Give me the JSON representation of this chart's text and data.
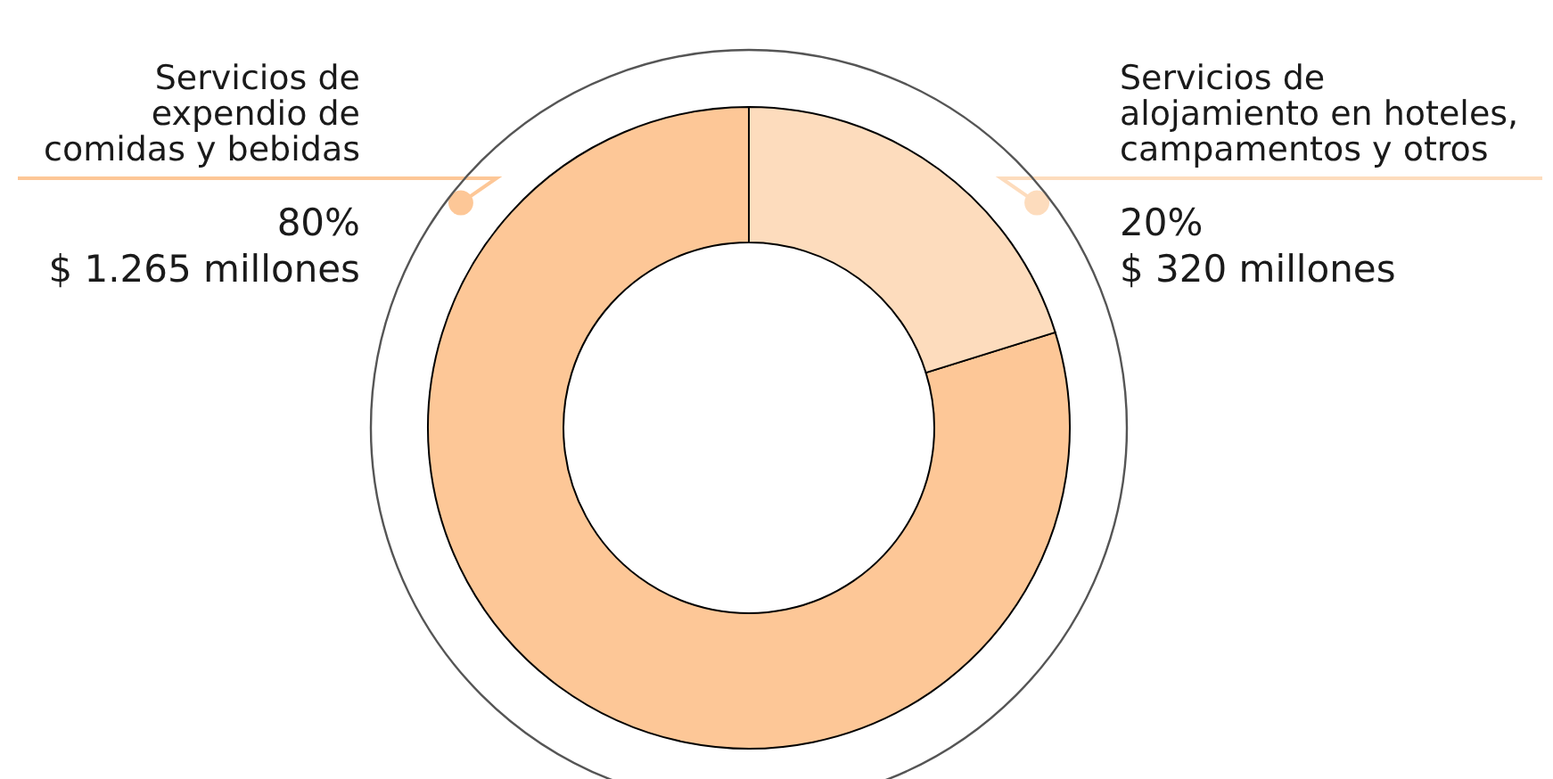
{
  "chart_data": {
    "type": "donut",
    "categories": [
      "Servicios de\nexpendio de\ncomidas y bebidas",
      "Servicios de\nalojamiento en hoteles,\ncampamentos y otros"
    ],
    "values": [
      1265,
      320
    ],
    "colors": [
      "#fdc797",
      "#fddcbd"
    ],
    "value_labels": [
      "80%\n$ 1.265 millones",
      "20%\n$ 320 millones"
    ]
  }
}
